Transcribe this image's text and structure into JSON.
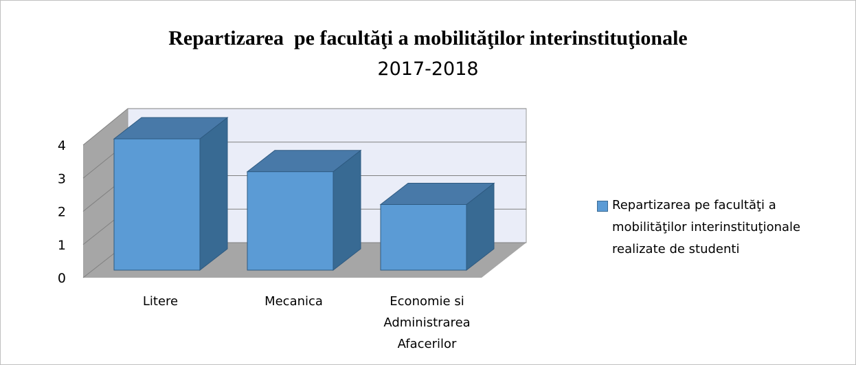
{
  "chart_data": {
    "type": "bar3d",
    "title": "Repartizarea  pe facultăţi a mobilităţilor interinstituţionale",
    "subtitle": "2017-2018",
    "categories": [
      "Litere",
      "Mecanica",
      "Economie si Administrarea Afacerilor"
    ],
    "series": [
      {
        "name": "Repartizarea pe facultăţi a mobilităţilor interinstituţionale realizate de studenti",
        "color": "#5b9bd5",
        "values": [
          4,
          3,
          2
        ]
      }
    ],
    "ylim": [
      0,
      4
    ],
    "yticks": [
      0,
      1,
      2,
      3,
      4
    ],
    "grid": true,
    "legend": "right"
  }
}
